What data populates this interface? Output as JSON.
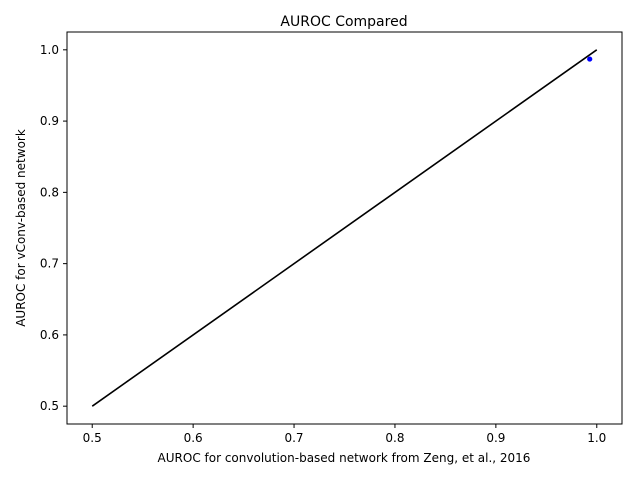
{
  "chart_data": {
    "type": "scatter",
    "title": "AUROC Compared",
    "xlabel": "AUROC for convolution-based network from Zeng, et al., 2016",
    "ylabel": "AUROC for vConv-based network",
    "xlim": [
      0.475,
      1.025
    ],
    "ylim": [
      0.475,
      1.025
    ],
    "x_ticks": [
      0.5,
      0.6,
      0.7,
      0.8,
      0.9,
      1.0
    ],
    "x_tick_labels": [
      "0.5",
      "0.6",
      "0.7",
      "0.8",
      "0.9",
      "1.0"
    ],
    "y_ticks": [
      0.5,
      0.6,
      0.7,
      0.8,
      0.9,
      1.0
    ],
    "y_tick_labels": [
      "0.5",
      "0.6",
      "0.7",
      "0.8",
      "0.9",
      "1.0"
    ],
    "grid": false,
    "legend": "none",
    "series": [
      {
        "kind": "points",
        "color": "#0000ff",
        "points": [
          {
            "x": 0.993,
            "y": 0.987
          }
        ]
      },
      {
        "kind": "line",
        "color": "#000000",
        "points": [
          {
            "x": 0.5,
            "y": 0.5
          },
          {
            "x": 1.0,
            "y": 1.0
          }
        ]
      }
    ]
  }
}
